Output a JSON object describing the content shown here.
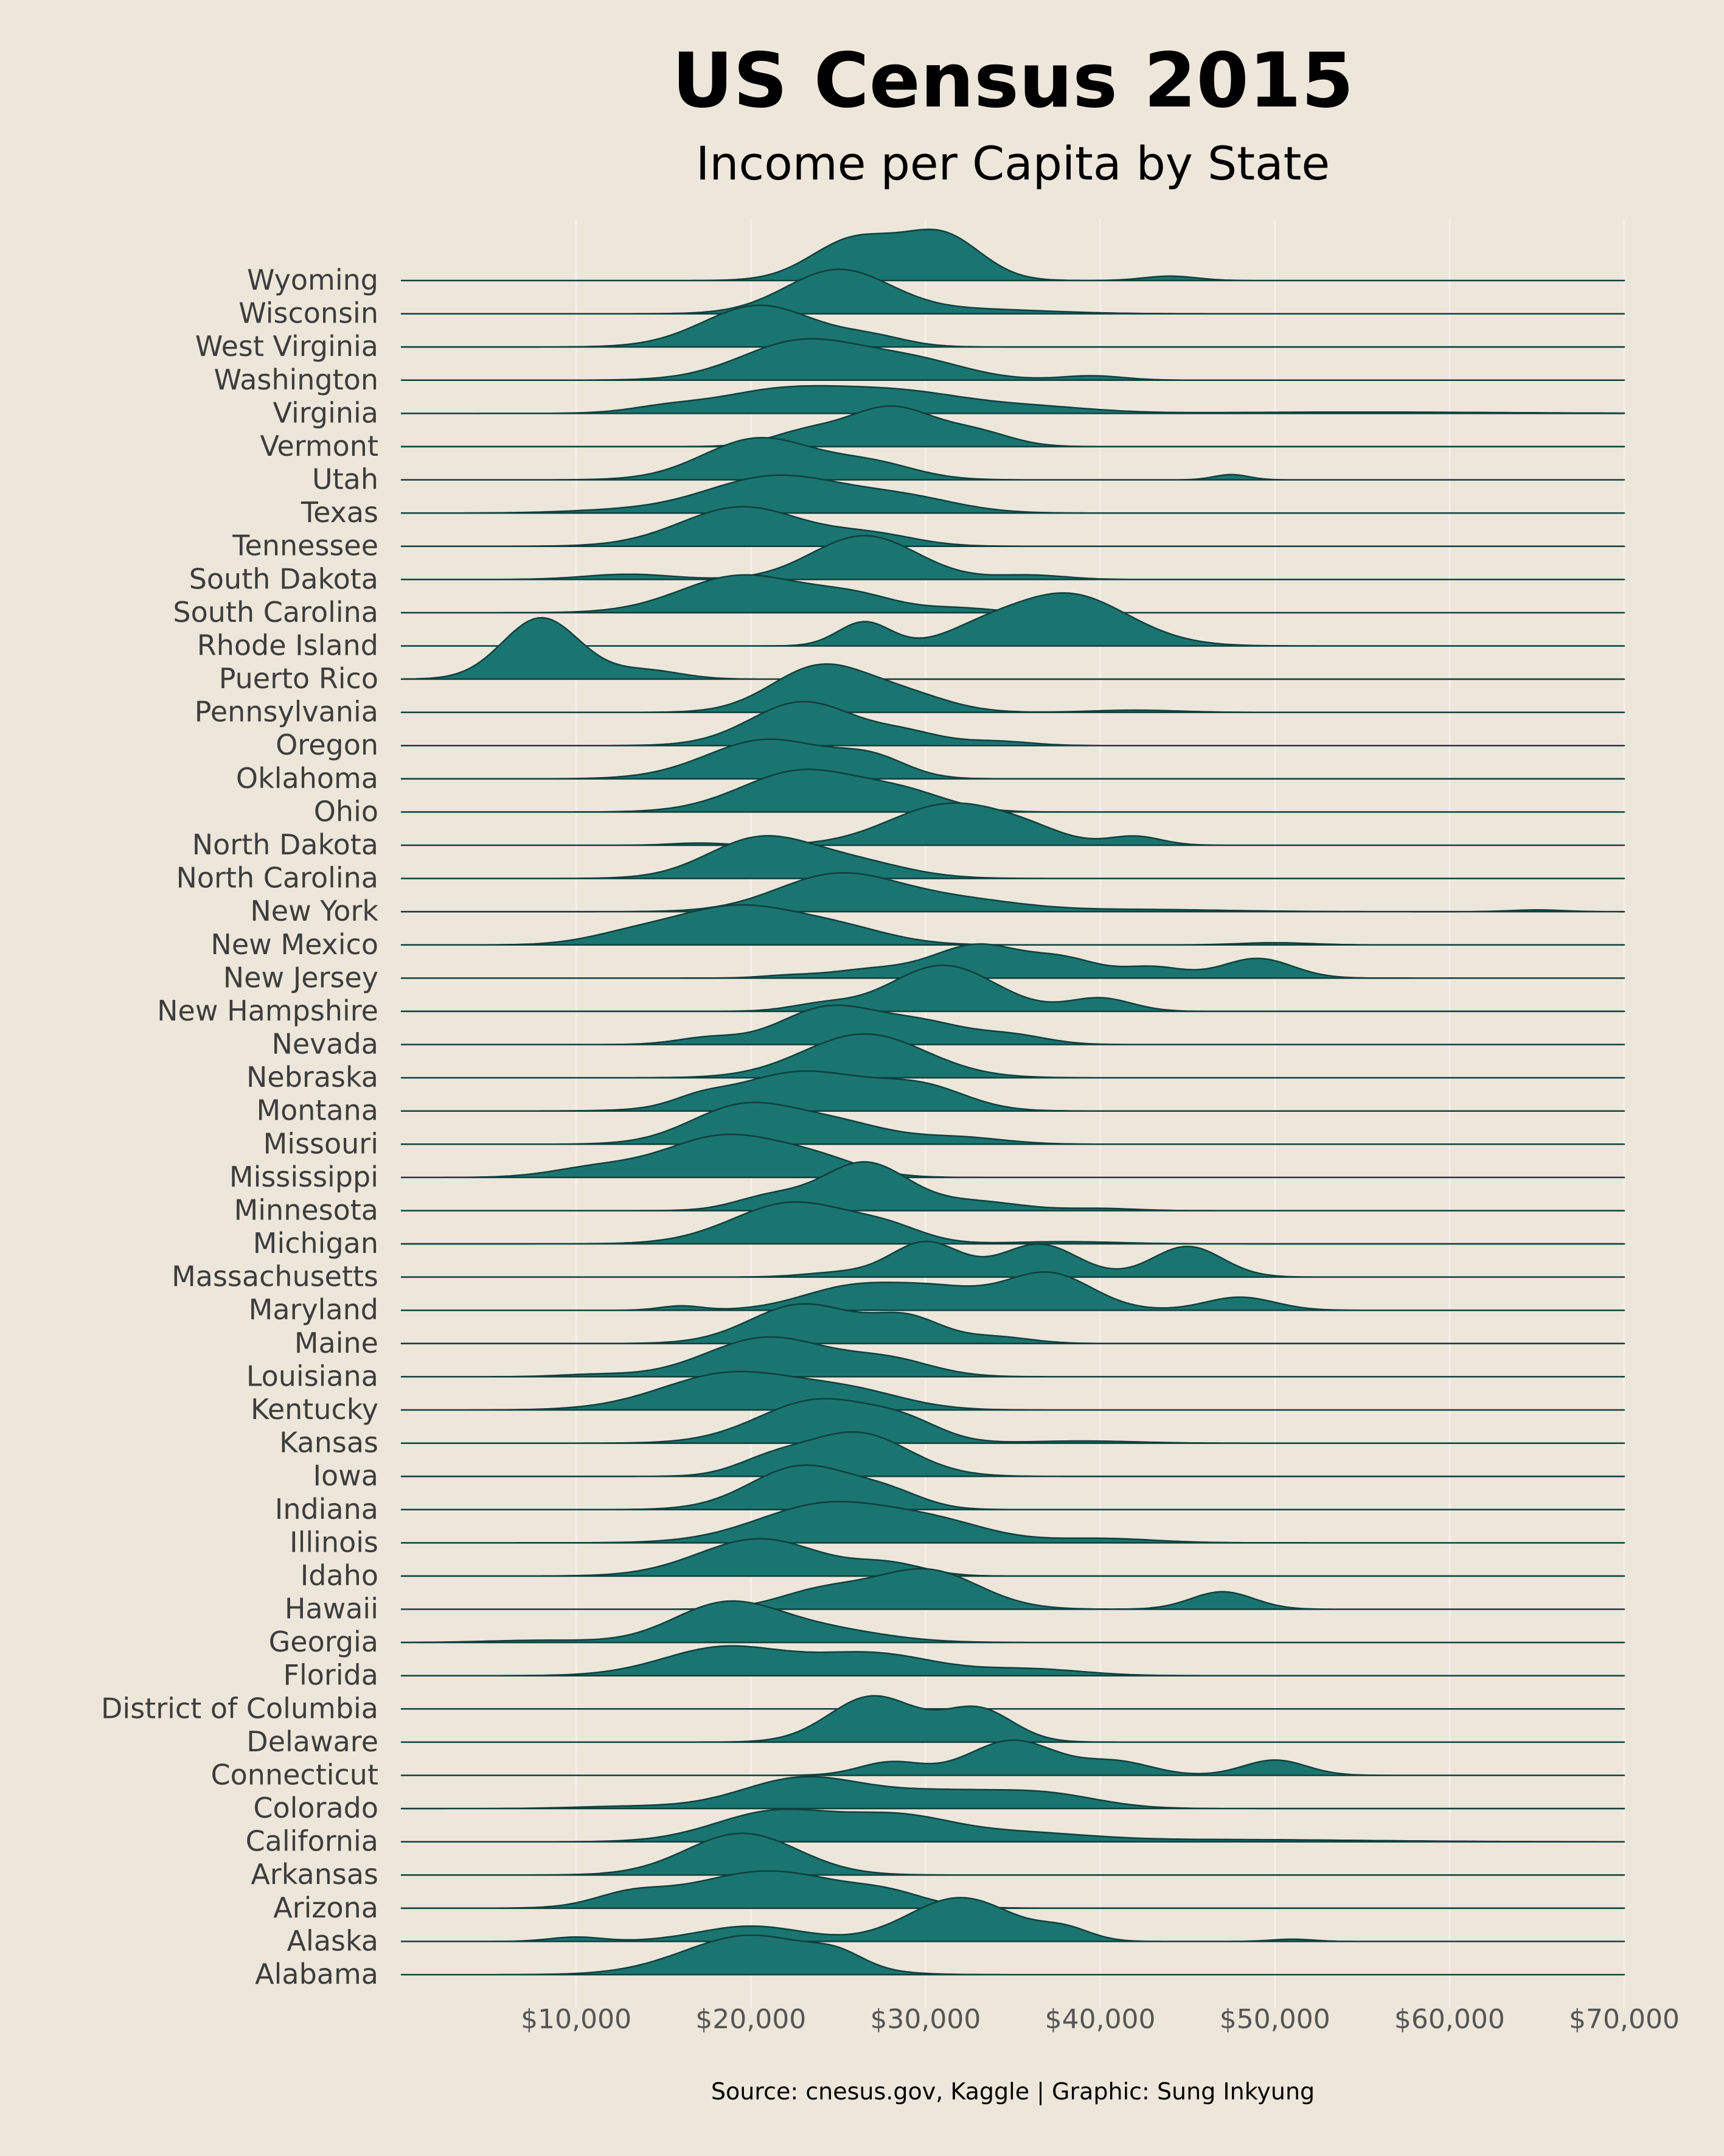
{
  "chart_data": {
    "type": "area",
    "title": "US Census 2015",
    "subtitle": "Income per Capita by State",
    "caption": "Source: cnesus.gov, Kaggle | Graphic: Sung Inkyung",
    "xlabel": "",
    "ylabel": "",
    "xlim": [
      0,
      70000
    ],
    "xticks": [
      10000,
      20000,
      30000,
      40000,
      50000,
      60000,
      70000
    ],
    "xtick_labels": [
      "$10,000",
      "$20,000",
      "$30,000",
      "$40,000",
      "$50,000",
      "$60,000",
      "$70,000"
    ],
    "grid": "vertical",
    "colors": {
      "fill": "#1A7571",
      "stroke": "#0E3F3D",
      "background": "#EDE6DA",
      "grid": "#F5F1EA"
    },
    "series": [
      {
        "name": "Alabama",
        "peaks": [
          [
            20000,
            3800,
            0.9
          ],
          [
            25000,
            1500,
            0.25
          ]
        ]
      },
      {
        "name": "Alaska",
        "peaks": [
          [
            20000,
            3000,
            0.35
          ],
          [
            32000,
            3000,
            1.0
          ],
          [
            38000,
            1500,
            0.25
          ],
          [
            10000,
            1500,
            0.1
          ],
          [
            51000,
            1200,
            0.05
          ]
        ]
      },
      {
        "name": "Arizona",
        "peaks": [
          [
            21000,
            4500,
            0.85
          ],
          [
            13000,
            2000,
            0.25
          ],
          [
            28000,
            2000,
            0.2
          ]
        ]
      },
      {
        "name": "Arkansas",
        "peaks": [
          [
            19500,
            3200,
            0.95
          ]
        ]
      },
      {
        "name": "California",
        "peaks": [
          [
            21500,
            3500,
            0.7
          ],
          [
            28500,
            3000,
            0.5
          ],
          [
            35000,
            4000,
            0.2
          ],
          [
            47000,
            8000,
            0.05
          ]
        ]
      },
      {
        "name": "Colorado",
        "peaks": [
          [
            23000,
            3500,
            0.7
          ],
          [
            31000,
            3500,
            0.35
          ],
          [
            37000,
            3000,
            0.3
          ],
          [
            13000,
            3000,
            0.05
          ]
        ]
      },
      {
        "name": "Connecticut",
        "peaks": [
          [
            28000,
            1800,
            0.3
          ],
          [
            35000,
            2500,
            0.8
          ],
          [
            41000,
            2000,
            0.3
          ],
          [
            50000,
            1800,
            0.35
          ]
        ]
      },
      {
        "name": "Delaware",
        "peaks": [
          [
            27000,
            2500,
            1.05
          ],
          [
            33000,
            2000,
            0.75
          ]
        ]
      },
      {
        "name": "District of Columbia",
        "peaks": [
          [
            44000,
            3000,
            0.0
          ]
        ]
      },
      {
        "name": "Florida",
        "peaks": [
          [
            18500,
            3500,
            0.65
          ],
          [
            27000,
            3500,
            0.5
          ],
          [
            36000,
            3000,
            0.15
          ]
        ]
      },
      {
        "name": "Georgia",
        "peaks": [
          [
            18500,
            3000,
            0.85
          ],
          [
            24000,
            3500,
            0.3
          ],
          [
            8000,
            3000,
            0.05
          ]
        ]
      },
      {
        "name": "Hawaii",
        "peaks": [
          [
            30000,
            3000,
            0.9
          ],
          [
            24000,
            2500,
            0.4
          ],
          [
            47000,
            1800,
            0.4
          ]
        ]
      },
      {
        "name": "Idaho",
        "peaks": [
          [
            20500,
            3500,
            0.85
          ],
          [
            28000,
            2000,
            0.25
          ]
        ]
      },
      {
        "name": "Illinois",
        "peaks": [
          [
            24500,
            4000,
            0.9
          ],
          [
            31000,
            3000,
            0.35
          ],
          [
            40000,
            3000,
            0.1
          ]
        ]
      },
      {
        "name": "Indiana",
        "peaks": [
          [
            23000,
            3000,
            1.0
          ],
          [
            28000,
            2000,
            0.3
          ]
        ]
      },
      {
        "name": "Iowa",
        "peaks": [
          [
            26000,
            3000,
            1.0
          ],
          [
            21000,
            2000,
            0.3
          ]
        ]
      },
      {
        "name": "Kansas",
        "peaks": [
          [
            24000,
            3500,
            1.0
          ],
          [
            29000,
            2000,
            0.3
          ],
          [
            39000,
            3000,
            0.05
          ]
        ]
      },
      {
        "name": "Kentucky",
        "peaks": [
          [
            19000,
            4000,
            0.85
          ],
          [
            26000,
            3000,
            0.35
          ]
        ]
      },
      {
        "name": "Louisiana",
        "peaks": [
          [
            21000,
            3500,
            0.9
          ],
          [
            28000,
            2500,
            0.35
          ],
          [
            11000,
            2000,
            0.05
          ]
        ]
      },
      {
        "name": "Maine",
        "peaks": [
          [
            23000,
            3000,
            0.9
          ],
          [
            29000,
            2000,
            0.55
          ],
          [
            34000,
            2000,
            0.15
          ]
        ]
      },
      {
        "name": "Maryland",
        "peaks": [
          [
            26000,
            3000,
            0.55
          ],
          [
            37000,
            2500,
            0.85
          ],
          [
            48000,
            2000,
            0.3
          ],
          [
            16000,
            1200,
            0.1
          ],
          [
            31000,
            2500,
            0.4
          ]
        ]
      },
      {
        "name": "Massachusetts",
        "peaks": [
          [
            30000,
            2000,
            0.8
          ],
          [
            36500,
            2200,
            0.75
          ],
          [
            45000,
            2000,
            0.7
          ],
          [
            25000,
            2000,
            0.1
          ]
        ]
      },
      {
        "name": "Michigan",
        "peaks": [
          [
            22500,
            3500,
            0.95
          ],
          [
            28000,
            2000,
            0.25
          ],
          [
            38000,
            3000,
            0.05
          ]
        ]
      },
      {
        "name": "Minnesota",
        "peaks": [
          [
            26500,
            2500,
            1.1
          ],
          [
            21000,
            2000,
            0.3
          ],
          [
            33000,
            2500,
            0.2
          ],
          [
            40000,
            2000,
            0.05
          ]
        ]
      },
      {
        "name": "Mississippi",
        "peaks": [
          [
            18500,
            3500,
            0.95
          ],
          [
            11000,
            2500,
            0.2
          ],
          [
            24000,
            2500,
            0.3
          ]
        ]
      },
      {
        "name": "Missouri",
        "peaks": [
          [
            19500,
            3000,
            0.85
          ],
          [
            25000,
            3000,
            0.45
          ],
          [
            32000,
            2500,
            0.15
          ]
        ]
      },
      {
        "name": "Montana",
        "peaks": [
          [
            23000,
            4000,
            0.9
          ],
          [
            30000,
            2500,
            0.45
          ],
          [
            17000,
            1500,
            0.15
          ]
        ]
      },
      {
        "name": "Nebraska",
        "peaks": [
          [
            26500,
            3500,
            1.0
          ]
        ]
      },
      {
        "name": "Nevada",
        "peaks": [
          [
            24500,
            2800,
            0.85
          ],
          [
            30000,
            2500,
            0.45
          ],
          [
            17500,
            1800,
            0.15
          ],
          [
            35000,
            2000,
            0.2
          ]
        ]
      },
      {
        "name": "New Hampshire",
        "peaks": [
          [
            31000,
            3000,
            1.05
          ],
          [
            40000,
            1800,
            0.3
          ],
          [
            24000,
            1800,
            0.15
          ]
        ]
      },
      {
        "name": "New Jersey",
        "peaks": [
          [
            33000,
            2500,
            0.75
          ],
          [
            38000,
            2000,
            0.4
          ],
          [
            27000,
            2500,
            0.2
          ],
          [
            43000,
            1800,
            0.25
          ],
          [
            49000,
            2000,
            0.45
          ],
          [
            22000,
            1500,
            0.05
          ]
        ]
      },
      {
        "name": "New Mexico",
        "peaks": [
          [
            19000,
            3500,
            0.85
          ],
          [
            13000,
            2500,
            0.2
          ],
          [
            25000,
            3000,
            0.35
          ],
          [
            50000,
            2000,
            0.05
          ]
        ]
      },
      {
        "name": "New York",
        "peaks": [
          [
            25000,
            3500,
            0.85
          ],
          [
            32000,
            3500,
            0.25
          ],
          [
            42000,
            5000,
            0.05
          ],
          [
            65000,
            1500,
            0.04
          ]
        ]
      },
      {
        "name": "North Carolina",
        "peaks": [
          [
            20500,
            3000,
            0.9
          ],
          [
            26000,
            3000,
            0.35
          ]
        ]
      },
      {
        "name": "North Dakota",
        "peaks": [
          [
            31500,
            3500,
            0.95
          ],
          [
            42000,
            1500,
            0.2
          ],
          [
            36000,
            2000,
            0.15
          ],
          [
            17000,
            1500,
            0.05
          ]
        ]
      },
      {
        "name": "Ohio",
        "peaks": [
          [
            23000,
            3500,
            0.95
          ],
          [
            29000,
            2500,
            0.35
          ]
        ]
      },
      {
        "name": "Oklahoma",
        "peaks": [
          [
            21000,
            3500,
            0.9
          ],
          [
            27000,
            2000,
            0.4
          ]
        ]
      },
      {
        "name": "Oregon",
        "peaks": [
          [
            23000,
            3000,
            1.0
          ],
          [
            29000,
            2000,
            0.25
          ],
          [
            34000,
            2000,
            0.1
          ]
        ]
      },
      {
        "name": "Pennsylvania",
        "peaks": [
          [
            24000,
            2800,
            1.05
          ],
          [
            29000,
            2500,
            0.35
          ],
          [
            42000,
            2500,
            0.05
          ]
        ]
      },
      {
        "name": "Puerto Rico",
        "peaks": [
          [
            8000,
            2200,
            1.4
          ],
          [
            14000,
            2000,
            0.2
          ]
        ]
      },
      {
        "name": "Rhode Island",
        "peaks": [
          [
            38000,
            3500,
            1.2
          ],
          [
            26500,
            1500,
            0.55
          ],
          [
            33000,
            2000,
            0.2
          ]
        ]
      },
      {
        "name": "South Carolina",
        "peaks": [
          [
            19500,
            3500,
            0.85
          ],
          [
            26000,
            2500,
            0.35
          ],
          [
            32000,
            2000,
            0.1
          ]
        ]
      },
      {
        "name": "South Dakota",
        "peaks": [
          [
            26500,
            3000,
            1.0
          ],
          [
            13000,
            2500,
            0.12
          ],
          [
            36000,
            2000,
            0.1
          ]
        ]
      },
      {
        "name": "Tennessee",
        "peaks": [
          [
            19500,
            3500,
            0.9
          ],
          [
            27000,
            2500,
            0.25
          ]
        ]
      },
      {
        "name": "Texas",
        "peaks": [
          [
            21500,
            4000,
            0.85
          ],
          [
            29000,
            3000,
            0.3
          ],
          [
            12000,
            3000,
            0.05
          ]
        ]
      },
      {
        "name": "Utah",
        "peaks": [
          [
            20500,
            3200,
            0.95
          ],
          [
            27000,
            2500,
            0.35
          ],
          [
            47500,
            1000,
            0.12
          ]
        ]
      },
      {
        "name": "Vermont",
        "peaks": [
          [
            28000,
            2500,
            0.9
          ],
          [
            23000,
            2000,
            0.3
          ],
          [
            33000,
            2000,
            0.3
          ]
        ]
      },
      {
        "name": "Virginia",
        "peaks": [
          [
            22000,
            4000,
            0.55
          ],
          [
            29000,
            3500,
            0.4
          ],
          [
            36000,
            3500,
            0.15
          ],
          [
            15000,
            2000,
            0.1
          ],
          [
            55000,
            8000,
            0.03
          ]
        ]
      },
      {
        "name": "Washington",
        "peaks": [
          [
            23000,
            3500,
            0.9
          ],
          [
            29500,
            3000,
            0.4
          ],
          [
            39500,
            1800,
            0.1
          ]
        ]
      },
      {
        "name": "West Virginia",
        "peaks": [
          [
            20500,
            3200,
            0.95
          ],
          [
            27000,
            2000,
            0.2
          ]
        ]
      },
      {
        "name": "Wisconsin",
        "peaks": [
          [
            25000,
            3000,
            1.0
          ],
          [
            33000,
            4000,
            0.1
          ]
        ]
      },
      {
        "name": "Wyoming",
        "peaks": [
          [
            26000,
            2500,
            0.95
          ],
          [
            31000,
            2200,
            1.0
          ],
          [
            44000,
            1500,
            0.1
          ]
        ]
      }
    ]
  }
}
